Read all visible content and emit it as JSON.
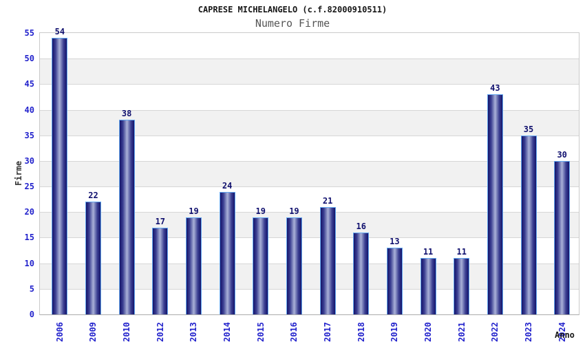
{
  "chart_data": {
    "type": "bar",
    "title": "CAPRESE MICHELANGELO (c.f.82000910511)",
    "subtitle": "Numero Firme",
    "xlabel": "Anno",
    "ylabel": "Firme",
    "categories": [
      "2006",
      "2009",
      "2010",
      "2012",
      "2013",
      "2014",
      "2015",
      "2016",
      "2017",
      "2018",
      "2019",
      "2020",
      "2021",
      "2022",
      "2023",
      "2024"
    ],
    "values": [
      54,
      22,
      38,
      17,
      19,
      24,
      19,
      19,
      21,
      16,
      13,
      11,
      11,
      43,
      35,
      30
    ],
    "ylim": [
      0,
      55
    ],
    "ytick_step": 5,
    "yticks": [
      0,
      5,
      10,
      15,
      20,
      25,
      30,
      35,
      40,
      45,
      50,
      55
    ],
    "legend": "none",
    "grid": "horizontal gridlines every 5 with alternating gray bands",
    "bar_value_labels": true,
    "colors": {
      "tick_label_blue": "#2222cc",
      "value_label_navy": "#10106e",
      "bar_edge": "#14146a",
      "bar_shade": "#3b3f92",
      "bar_mid": "#8a91c4",
      "bar_highlight": "#aab0d8",
      "bar_border": "#64a8f0",
      "band_gray": "#f1f1f1",
      "grid_line": "#d6d6d6",
      "plot_border": "#c9c9c9",
      "subtitle_gray": "#555555",
      "axis_title_dark": "#333333",
      "background": "#ffffff"
    }
  }
}
